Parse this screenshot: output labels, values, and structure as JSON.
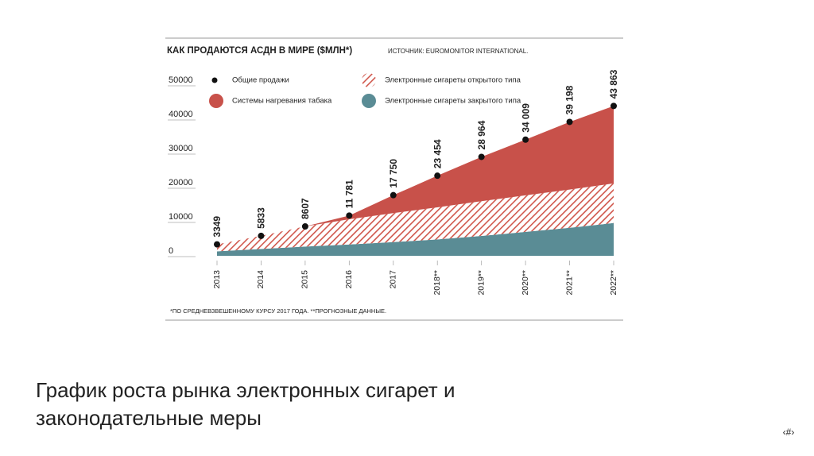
{
  "chart_data": {
    "type": "stacked-area",
    "title": "КАК ПРОДАЮТСЯ АСДН В МИРЕ ($МЛН*)",
    "source": "ИСТОЧНИК: EUROMONITOR INTERNATIONAL.",
    "footnote": "*ПО СРЕДНЕВЗВЕШЕННОМУ КУРСУ 2017 ГОДА.  **ПРОГНОЗНЫЕ ДАННЫЕ.",
    "categories": [
      "2013",
      "2014",
      "2015",
      "2016",
      "2017",
      "2018**",
      "2019**",
      "2020**",
      "2021**",
      "2022**"
    ],
    "series": [
      {
        "name": "Электронные сигареты закрытого типа",
        "color": "#5a8c95",
        "values": [
          1300,
          2000,
          2700,
          3300,
          4000,
          4800,
          5800,
          7000,
          8200,
          9600
        ]
      },
      {
        "name": "Электронные сигареты открытого типа",
        "color": "#d0574c",
        "pattern": "hatch",
        "values": [
          2049,
          3833,
          5907,
          7400,
          8500,
          9400,
          10200,
          10700,
          11200,
          11600
        ]
      },
      {
        "name": "Системы нагревания табака",
        "color": "#c8514a",
        "values": [
          0,
          0,
          0,
          1081,
          5250,
          9254,
          12964,
          16309,
          19798,
          22663
        ]
      }
    ],
    "total": {
      "name": "Общие продажи",
      "color": "#111111",
      "values": [
        3349,
        5833,
        8607,
        11781,
        17750,
        23454,
        28964,
        34009,
        39198,
        43863
      ],
      "value_labels": [
        "3349",
        "5833",
        "8607",
        "11 781",
        "17 750",
        "23 454",
        "28 964",
        "34 009",
        "39 198",
        "43 863"
      ]
    },
    "ylim": [
      0,
      50000
    ],
    "yticks": [
      0,
      10000,
      20000,
      30000,
      40000,
      50000
    ]
  },
  "slide": {
    "caption": [
      "График роста рынка электронных сигарет и",
      "законодательные меры"
    ],
    "page_number": "‹#›"
  }
}
